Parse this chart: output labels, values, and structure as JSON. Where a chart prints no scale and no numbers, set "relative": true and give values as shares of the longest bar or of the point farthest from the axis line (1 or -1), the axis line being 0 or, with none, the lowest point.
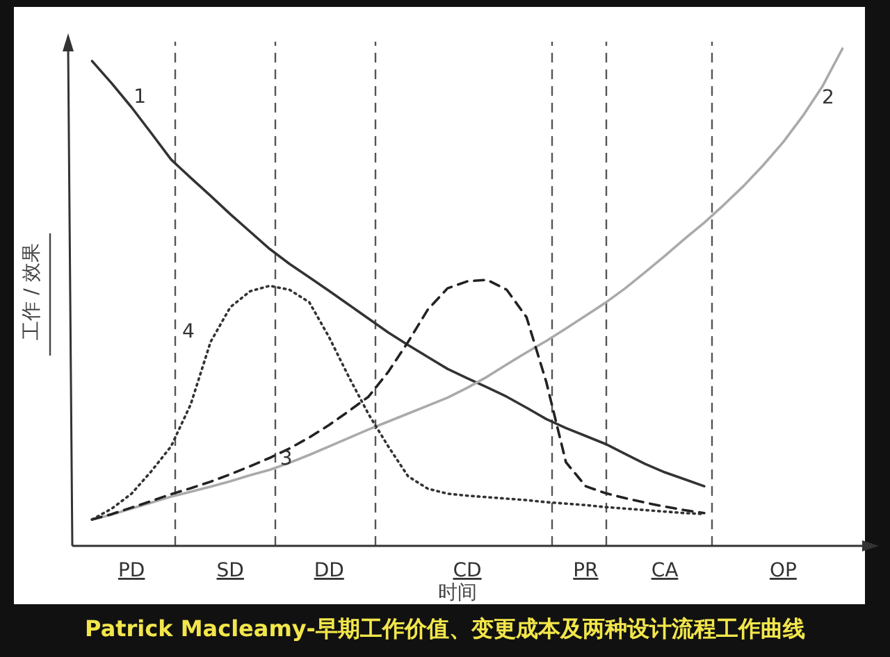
{
  "chart_data": {
    "type": "line",
    "relative": true,
    "title": "Patrick Macleamy-早期工作价值、变更成本及两种设计流程工作曲线",
    "xlabel": "时间",
    "ylabel": "工作 / 效果",
    "tick_labels": "x",
    "categories": [
      null,
      null,
      null,
      "PD",
      null,
      null,
      null,
      null,
      "SD",
      null,
      null,
      null,
      null,
      "DD",
      null,
      null,
      null,
      null,
      null,
      null,
      "CD",
      null,
      null,
      null,
      null,
      null,
      "PR",
      null,
      null,
      null,
      "CA",
      null,
      null,
      null,
      null,
      null,
      "OP",
      null,
      null,
      null,
      null
    ],
    "series": [
      {
        "name": "1",
        "color": "#333333",
        "line_style": "solid",
        "values": [
          null,
          0.975,
          0.93,
          0.882,
          0.83,
          0.777,
          0.74,
          0.704,
          0.667,
          0.632,
          0.597,
          0.567,
          0.54,
          0.513,
          0.485,
          0.457,
          0.429,
          0.404,
          0.38,
          0.356,
          0.337,
          0.319,
          0.3,
          0.278,
          0.255,
          0.237,
          0.221,
          0.205,
          0.185,
          0.165,
          0.148,
          0.134,
          0.12,
          null,
          null,
          null,
          null,
          null,
          null,
          null,
          null
        ]
      },
      {
        "name": "2",
        "color": "#aaaaaa",
        "line_style": "solid",
        "values": [
          null,
          0.053,
          0.063,
          0.075,
          0.087,
          0.099,
          0.109,
          0.119,
          0.13,
          0.142,
          0.153,
          0.167,
          0.183,
          0.2,
          0.217,
          0.234,
          0.25,
          0.266,
          0.282,
          0.298,
          0.318,
          0.34,
          0.365,
          0.389,
          0.412,
          0.437,
          0.463,
          0.489,
          0.518,
          0.55,
          0.583,
          0.617,
          0.65,
          0.686,
          0.724,
          0.766,
          0.812,
          0.865,
          0.925,
          1,
          null
        ]
      },
      {
        "name": "3",
        "color": "#222222",
        "line_style": "dashed",
        "values": [
          null,
          0.053,
          0.064,
          0.077,
          0.09,
          0.104,
          0.116,
          0.129,
          0.144,
          0.16,
          0.177,
          0.196,
          0.218,
          0.243,
          0.271,
          0.3,
          0.35,
          0.41,
          0.475,
          0.518,
          0.532,
          0.535,
          0.515,
          0.46,
          0.33,
          0.168,
          0.12,
          0.106,
          0.096,
          0.087,
          0.079,
          0.072,
          0.066,
          null,
          null,
          null,
          null,
          null,
          null,
          null,
          null
        ]
      },
      {
        "name": "4",
        "color": "#333333",
        "line_style": "dotted",
        "values": [
          null,
          0.053,
          0.075,
          0.105,
          0.15,
          0.2,
          0.285,
          0.41,
          0.48,
          0.512,
          0.523,
          0.515,
          0.49,
          0.42,
          0.34,
          0.265,
          0.2,
          0.14,
          0.115,
          0.105,
          0.101,
          0.098,
          0.095,
          0.092,
          0.088,
          0.085,
          0.082,
          0.078,
          0.075,
          0.072,
          0.069,
          0.066,
          0.064,
          null,
          null,
          null,
          null,
          null,
          null,
          null,
          null
        ]
      }
    ]
  }
}
